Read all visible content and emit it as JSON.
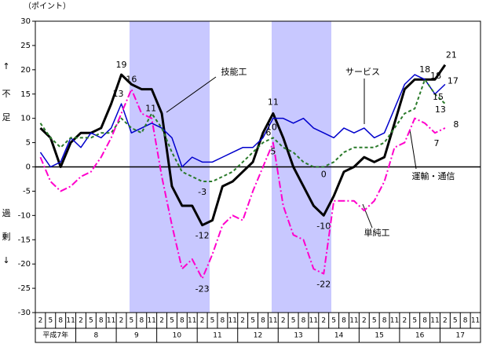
{
  "chart_data": {
    "type": "line",
    "y_unit": "（ポイント）",
    "y_side_top": [
      "↑",
      "不",
      "足"
    ],
    "y_side_bottom": [
      "過",
      "剰",
      "↓"
    ],
    "categories": [
      "2",
      "5",
      "8",
      "11",
      "2",
      "5",
      "8",
      "11",
      "2",
      "5",
      "8",
      "11",
      "2",
      "5",
      "8",
      "11",
      "2",
      "5",
      "8",
      "11",
      "2",
      "5",
      "8",
      "11",
      "2",
      "5",
      "8",
      "11",
      "2",
      "5",
      "8",
      "11",
      "2",
      "5",
      "8",
      "11",
      "2",
      "5",
      "8",
      "11",
      "2",
      "5",
      "8",
      "11"
    ],
    "years": [
      "平成7年",
      "8",
      "9",
      "10",
      "11",
      "12",
      "13",
      "14",
      "15",
      "16",
      "17"
    ],
    "ylim": [
      -30,
      30
    ],
    "yticks": [
      -30,
      -25,
      -20,
      -15,
      -10,
      -5,
      0,
      5,
      10,
      15,
      20,
      25,
      30
    ],
    "series": [
      {
        "name": "技能工",
        "color": "#000000",
        "values": [
          8,
          6,
          0,
          5,
          7,
          7,
          8,
          13,
          19,
          17,
          16,
          16,
          11,
          -4,
          -8,
          -8,
          -12,
          -11,
          -4,
          -3,
          -1,
          1,
          7,
          11,
          6,
          0,
          -4,
          -8,
          -10,
          -6,
          -1,
          0,
          2,
          1,
          2,
          9,
          16,
          18,
          18,
          18,
          21,
          null,
          null,
          null
        ],
        "value_labels": [
          null,
          null,
          null,
          null,
          null,
          null,
          null,
          null,
          "19",
          null,
          null,
          null,
          "11",
          null,
          null,
          null,
          "-12",
          null,
          null,
          null,
          null,
          null,
          null,
          "11",
          null,
          null,
          null,
          null,
          "-10",
          null,
          null,
          null,
          null,
          null,
          null,
          null,
          null,
          null,
          "18",
          null,
          "21",
          null,
          null,
          null
        ]
      },
      {
        "name": "サービス",
        "color": "#0000cc",
        "values": [
          3,
          0,
          1,
          6,
          4,
          7,
          6,
          8,
          13,
          7,
          8,
          9,
          8,
          6,
          0,
          2,
          1,
          1,
          2,
          3,
          4,
          4,
          6,
          10,
          10,
          9,
          10,
          8,
          7,
          6,
          8,
          7,
          8,
          6,
          7,
          12,
          17,
          19,
          18,
          15,
          17,
          null,
          null,
          null
        ],
        "value_labels": [
          null,
          null,
          null,
          null,
          null,
          null,
          null,
          null,
          "13",
          null,
          null,
          null,
          null,
          null,
          null,
          null,
          null,
          null,
          null,
          null,
          null,
          null,
          null,
          "10",
          null,
          null,
          null,
          null,
          null,
          null,
          null,
          null,
          null,
          null,
          null,
          null,
          null,
          null,
          null,
          null,
          "17",
          null,
          null,
          null
        ]
      },
      {
        "name": "運輸・通信",
        "color": "#2a7a2a",
        "values": [
          9,
          6,
          4,
          6,
          6,
          6,
          7,
          7,
          10,
          8,
          7,
          11,
          8,
          3,
          -1,
          -2,
          -3,
          -3,
          -2,
          -1,
          1,
          3,
          5,
          6,
          4,
          3,
          1,
          0,
          0,
          1,
          3,
          4,
          4,
          4,
          5,
          8,
          11,
          12,
          18,
          15,
          13,
          null,
          null,
          null
        ],
        "value_labels": [
          null,
          null,
          null,
          null,
          null,
          null,
          null,
          null,
          null,
          null,
          null,
          null,
          null,
          null,
          null,
          null,
          "-3",
          null,
          null,
          null,
          null,
          null,
          null,
          "6",
          null,
          null,
          null,
          null,
          "0",
          null,
          null,
          null,
          null,
          null,
          null,
          null,
          null,
          null,
          "18",
          "15",
          "13",
          null,
          null,
          null
        ]
      },
      {
        "name": "単純工",
        "color": "#ff00cc",
        "values": [
          2,
          -3,
          -5,
          -4,
          -2,
          -1,
          2,
          6,
          11,
          16,
          11,
          10,
          -2,
          -12,
          -21,
          -19,
          -23,
          -18,
          -12,
          -10,
          -11,
          -5,
          0,
          5,
          -8,
          -14,
          -15,
          -21,
          -22,
          -7,
          -7,
          -7,
          -9,
          -7,
          -3,
          4,
          5,
          10,
          9,
          7,
          8,
          null,
          null,
          null
        ],
        "value_labels": [
          null,
          null,
          null,
          null,
          null,
          null,
          null,
          null,
          null,
          "16",
          null,
          null,
          null,
          null,
          null,
          null,
          "-23",
          null,
          null,
          null,
          null,
          null,
          null,
          "5",
          null,
          null,
          null,
          null,
          "-22",
          null,
          null,
          null,
          null,
          null,
          null,
          null,
          null,
          null,
          null,
          "7",
          "8",
          null,
          null,
          null
        ]
      }
    ]
  }
}
